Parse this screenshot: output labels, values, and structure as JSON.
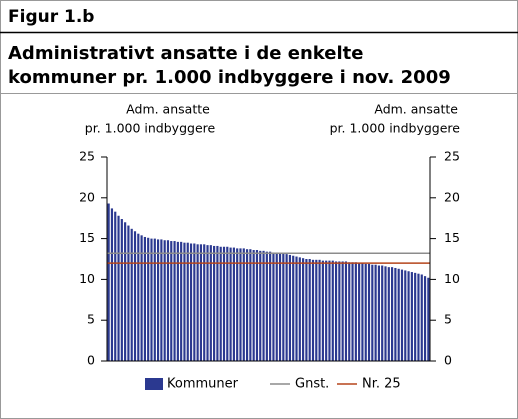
{
  "chart_data": {
    "type": "bar",
    "figure_label": "Figur 1.b",
    "title": [
      "Administrativt ansatte i de enkelte",
      "kommuner pr. 1.000 indbyggere i nov. 2009"
    ],
    "ylabel": [
      "Adm. ansatte",
      "pr. 1.000 indbyggere"
    ],
    "y2label": [
      "Adm. ansatte",
      "pr. 1.000 indbyggere"
    ],
    "ylim": [
      0,
      25
    ],
    "yticks": [
      0,
      5,
      10,
      15,
      20,
      25
    ],
    "y2lim": [
      0,
      25
    ],
    "y2ticks": [
      0,
      5,
      10,
      15,
      20,
      25
    ],
    "series": [
      {
        "name": "Kommuner",
        "color": "#2b3990",
        "values": [
          19.3,
          18.7,
          18.3,
          17.8,
          17.4,
          17.0,
          16.6,
          16.2,
          15.9,
          15.6,
          15.4,
          15.2,
          15.1,
          15.0,
          15.0,
          14.9,
          14.9,
          14.8,
          14.8,
          14.7,
          14.7,
          14.6,
          14.6,
          14.5,
          14.5,
          14.4,
          14.4,
          14.3,
          14.3,
          14.3,
          14.2,
          14.2,
          14.1,
          14.1,
          14.0,
          14.0,
          14.0,
          13.9,
          13.9,
          13.8,
          13.8,
          13.8,
          13.7,
          13.7,
          13.6,
          13.6,
          13.5,
          13.5,
          13.4,
          13.4,
          13.3,
          13.3,
          13.2,
          13.2,
          13.1,
          13.0,
          12.9,
          12.8,
          12.7,
          12.6,
          12.5,
          12.5,
          12.4,
          12.4,
          12.4,
          12.3,
          12.3,
          12.3,
          12.3,
          12.2,
          12.2,
          12.2,
          12.2,
          12.1,
          12.1,
          12.1,
          12.0,
          12.0,
          11.9,
          11.9,
          11.8,
          11.8,
          11.7,
          11.7,
          11.6,
          11.5,
          11.5,
          11.4,
          11.3,
          11.2,
          11.1,
          11.0,
          10.9,
          10.8,
          10.7,
          10.6,
          10.4,
          10.2
        ]
      }
    ],
    "reference_lines": [
      {
        "name": "Gnst.",
        "color": "#8c8c8c",
        "value": 13.2
      },
      {
        "name": "Nr. 25",
        "color": "#b5451b",
        "value": 12.0
      }
    ]
  }
}
